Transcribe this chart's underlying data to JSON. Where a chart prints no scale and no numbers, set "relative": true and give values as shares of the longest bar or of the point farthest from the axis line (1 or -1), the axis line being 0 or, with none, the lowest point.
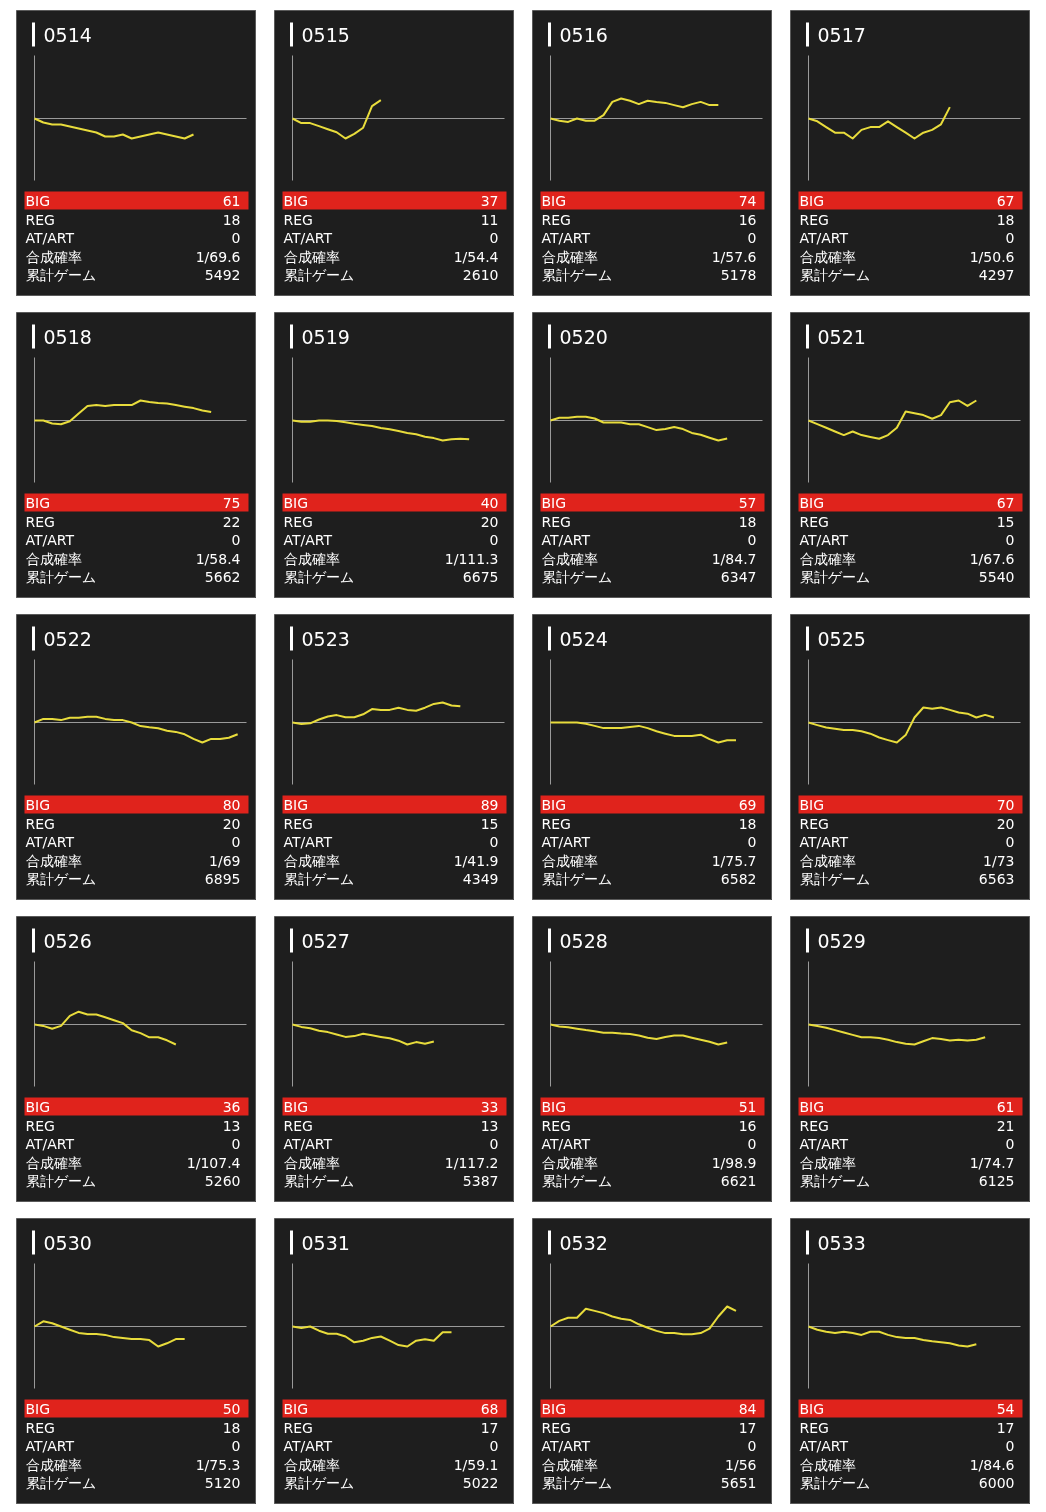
{
  "chart_data": [
    {
      "type": "line",
      "title": "0514",
      "color": "#e8dc3c",
      "relative": true,
      "categories": [
        null,
        null,
        null,
        null,
        null,
        null,
        null,
        null,
        null,
        null,
        null,
        null,
        null,
        null,
        null,
        null,
        null,
        null,
        null,
        null,
        null,
        null,
        null,
        null,
        null
      ],
      "values": [
        0,
        -0.2,
        -0.3,
        -0.3,
        -0.4,
        -0.5,
        -0.6,
        -0.7,
        -0.9,
        -0.9,
        -0.8,
        -1,
        -0.9,
        -0.8,
        -0.7,
        -0.8,
        -0.9,
        -1,
        -0.8,
        null,
        null,
        null,
        null,
        null,
        null
      ],
      "annotations": [
        "BIG",
        "61",
        "REG",
        "18",
        "AT/ART",
        "0",
        "合成確率",
        "1/69.6",
        "累計ゲーム",
        "5492"
      ]
    },
    {
      "type": "line",
      "title": "0515",
      "color": "#e8dc3c",
      "relative": true,
      "categories": [
        null,
        null,
        null,
        null,
        null,
        null,
        null,
        null,
        null,
        null,
        null,
        null,
        null,
        null,
        null,
        null,
        null,
        null,
        null,
        null,
        null,
        null,
        null,
        null,
        null
      ],
      "values": [
        0,
        -0.23,
        -0.23,
        -0.38,
        -0.54,
        -0.69,
        -1,
        -0.77,
        -0.46,
        0.62,
        0.92,
        null,
        null,
        null,
        null,
        null,
        null,
        null,
        null,
        null,
        null,
        null,
        null,
        null,
        null
      ],
      "annotations": [
        "BIG",
        "37",
        "REG",
        "11",
        "AT/ART",
        "0",
        "合成確率",
        "1/54.4",
        "累計ゲーム",
        "2610"
      ]
    },
    {
      "type": "line",
      "title": "0516",
      "color": "#e8dc3c",
      "relative": true,
      "categories": [
        null,
        null,
        null,
        null,
        null,
        null,
        null,
        null,
        null,
        null,
        null,
        null,
        null,
        null,
        null,
        null,
        null,
        null,
        null,
        null,
        null,
        null,
        null,
        null,
        null
      ],
      "values": [
        0,
        -0.11,
        -0.17,
        0,
        -0.11,
        -0.11,
        0.17,
        0.83,
        1,
        0.89,
        0.72,
        0.89,
        0.83,
        0.78,
        0.67,
        0.56,
        0.72,
        0.83,
        0.67,
        0.67,
        null,
        null,
        null,
        null,
        null
      ],
      "annotations": [
        "BIG",
        "74",
        "REG",
        "16",
        "AT/ART",
        "0",
        "合成確率",
        "1/57.6",
        "累計ゲーム",
        "5178"
      ]
    },
    {
      "type": "line",
      "title": "0517",
      "color": "#e8dc3c",
      "relative": true,
      "categories": [
        null,
        null,
        null,
        null,
        null,
        null,
        null,
        null,
        null,
        null,
        null,
        null,
        null,
        null,
        null,
        null,
        null,
        null,
        null,
        null,
        null,
        null,
        null,
        null,
        null
      ],
      "values": [
        0,
        -0.14,
        -0.43,
        -0.71,
        -0.71,
        -1,
        -0.57,
        -0.43,
        -0.43,
        -0.14,
        -0.43,
        -0.71,
        -1,
        -0.71,
        -0.57,
        -0.29,
        0.57,
        null,
        null,
        null,
        null,
        null,
        null,
        null,
        null
      ],
      "annotations": [
        "BIG",
        "67",
        "REG",
        "18",
        "AT/ART",
        "0",
        "合成確率",
        "1/50.6",
        "累計ゲーム",
        "4297"
      ]
    },
    {
      "type": "line",
      "title": "0518",
      "color": "#e8dc3c",
      "relative": true,
      "categories": [
        null,
        null,
        null,
        null,
        null,
        null,
        null,
        null,
        null,
        null,
        null,
        null,
        null,
        null,
        null,
        null,
        null,
        null,
        null,
        null,
        null,
        null,
        null,
        null,
        null
      ],
      "values": [
        0,
        0,
        -0.15,
        -0.19,
        -0.04,
        0.35,
        0.73,
        0.77,
        0.73,
        0.77,
        0.77,
        0.77,
        1,
        0.92,
        0.88,
        0.85,
        0.77,
        0.69,
        0.62,
        0.5,
        0.42,
        null,
        null,
        null,
        null
      ],
      "annotations": [
        "BIG",
        "75",
        "REG",
        "22",
        "AT/ART",
        "0",
        "合成確率",
        "1/58.4",
        "累計ゲーム",
        "5662"
      ]
    },
    {
      "type": "line",
      "title": "0519",
      "color": "#e8dc3c",
      "relative": true,
      "categories": [
        null,
        null,
        null,
        null,
        null,
        null,
        null,
        null,
        null,
        null,
        null,
        null,
        null,
        null,
        null,
        null,
        null,
        null,
        null,
        null,
        null,
        null,
        null,
        null,
        null
      ],
      "values": [
        0,
        -0.06,
        -0.06,
        0,
        0,
        -0.03,
        -0.09,
        -0.16,
        -0.22,
        -0.28,
        -0.38,
        -0.44,
        -0.53,
        -0.63,
        -0.69,
        -0.81,
        -0.88,
        -1,
        -0.94,
        -0.91,
        -0.94,
        null,
        null,
        null,
        null
      ],
      "annotations": [
        "BIG",
        "40",
        "REG",
        "20",
        "AT/ART",
        "0",
        "合成確率",
        "1/111.3",
        "累計ゲーム",
        "6675"
      ]
    },
    {
      "type": "line",
      "title": "0520",
      "color": "#e8dc3c",
      "relative": true,
      "categories": [
        null,
        null,
        null,
        null,
        null,
        null,
        null,
        null,
        null,
        null,
        null,
        null,
        null,
        null,
        null,
        null,
        null,
        null,
        null,
        null,
        null,
        null,
        null,
        null,
        null
      ],
      "values": [
        0,
        0.14,
        0.14,
        0.19,
        0.19,
        0.1,
        -0.1,
        -0.1,
        -0.1,
        -0.19,
        -0.19,
        -0.33,
        -0.48,
        -0.43,
        -0.33,
        -0.43,
        -0.62,
        -0.71,
        -0.86,
        -1,
        -0.9,
        null,
        null,
        null,
        null
      ],
      "annotations": [
        "BIG",
        "57",
        "REG",
        "18",
        "AT/ART",
        "0",
        "合成確率",
        "1/84.7",
        "累計ゲーム",
        "6347"
      ]
    },
    {
      "type": "line",
      "title": "0521",
      "color": "#e8dc3c",
      "relative": true,
      "categories": [
        null,
        null,
        null,
        null,
        null,
        null,
        null,
        null,
        null,
        null,
        null,
        null,
        null,
        null,
        null,
        null,
        null,
        null,
        null,
        null,
        null,
        null,
        null,
        null,
        null
      ],
      "values": [
        0,
        -0.18,
        -0.36,
        -0.55,
        -0.73,
        -0.55,
        -0.73,
        -0.82,
        -0.91,
        -0.73,
        -0.36,
        0.45,
        0.36,
        0.27,
        0.09,
        0.27,
        0.91,
        1,
        0.73,
        1,
        null,
        null,
        null,
        null,
        null
      ],
      "annotations": [
        "BIG",
        "67",
        "REG",
        "15",
        "AT/ART",
        "0",
        "合成確率",
        "1/67.6",
        "累計ゲーム",
        "5540"
      ]
    },
    {
      "type": "line",
      "title": "0522",
      "color": "#e8dc3c",
      "relative": true,
      "categories": [
        null,
        null,
        null,
        null,
        null,
        null,
        null,
        null,
        null,
        null,
        null,
        null,
        null,
        null,
        null,
        null,
        null,
        null,
        null,
        null,
        null,
        null,
        null,
        null,
        null
      ],
      "values": [
        0,
        0.18,
        0.18,
        0.12,
        0.24,
        0.24,
        0.29,
        0.29,
        0.18,
        0.12,
        0.12,
        0,
        -0.18,
        -0.24,
        -0.29,
        -0.41,
        -0.47,
        -0.59,
        -0.82,
        -1,
        -0.82,
        -0.82,
        -0.76,
        -0.59,
        null
      ],
      "annotations": [
        "BIG",
        "80",
        "REG",
        "20",
        "AT/ART",
        "0",
        "合成確率",
        "1/69",
        "累計ゲーム",
        "6895"
      ]
    },
    {
      "type": "line",
      "title": "0523",
      "color": "#e8dc3c",
      "relative": true,
      "categories": [
        null,
        null,
        null,
        null,
        null,
        null,
        null,
        null,
        null,
        null,
        null,
        null,
        null,
        null,
        null,
        null,
        null,
        null,
        null,
        null,
        null,
        null,
        null,
        null,
        null
      ],
      "values": [
        0,
        -0.07,
        -0.04,
        0.15,
        0.3,
        0.37,
        0.26,
        0.26,
        0.41,
        0.67,
        0.63,
        0.63,
        0.74,
        0.63,
        0.59,
        0.74,
        0.93,
        1,
        0.85,
        0.81,
        null,
        null,
        null,
        null,
        null
      ],
      "annotations": [
        "BIG",
        "89",
        "REG",
        "15",
        "AT/ART",
        "0",
        "合成確率",
        "1/41.9",
        "累計ゲーム",
        "4349"
      ]
    },
    {
      "type": "line",
      "title": "0524",
      "color": "#e8dc3c",
      "relative": true,
      "categories": [
        null,
        null,
        null,
        null,
        null,
        null,
        null,
        null,
        null,
        null,
        null,
        null,
        null,
        null,
        null,
        null,
        null,
        null,
        null,
        null,
        null,
        null,
        null,
        null,
        null
      ],
      "values": [
        0,
        0,
        0,
        0,
        -0.06,
        -0.17,
        -0.28,
        -0.28,
        -0.28,
        -0.22,
        -0.17,
        -0.28,
        -0.44,
        -0.56,
        -0.67,
        -0.67,
        -0.67,
        -0.61,
        -0.83,
        -1,
        -0.89,
        -0.89,
        null,
        null,
        null
      ],
      "annotations": [
        "BIG",
        "69",
        "REG",
        "18",
        "AT/ART",
        "0",
        "合成確率",
        "1/75.7",
        "累計ゲーム",
        "6582"
      ]
    },
    {
      "type": "line",
      "title": "0525",
      "color": "#e8dc3c",
      "relative": true,
      "categories": [
        null,
        null,
        null,
        null,
        null,
        null,
        null,
        null,
        null,
        null,
        null,
        null,
        null,
        null,
        null,
        null,
        null,
        null,
        null,
        null,
        null,
        null,
        null,
        null,
        null
      ],
      "values": [
        0,
        -0.13,
        -0.25,
        -0.31,
        -0.38,
        -0.38,
        -0.44,
        -0.56,
        -0.75,
        -0.88,
        -1,
        -0.63,
        0.25,
        0.75,
        0.69,
        0.75,
        0.63,
        0.5,
        0.44,
        0.25,
        0.38,
        0.25,
        null,
        null,
        null
      ],
      "annotations": [
        "BIG",
        "70",
        "REG",
        "20",
        "AT/ART",
        "0",
        "合成確率",
        "1/73",
        "累計ゲーム",
        "6563"
      ]
    },
    {
      "type": "line",
      "title": "0526",
      "color": "#e8dc3c",
      "relative": true,
      "categories": [
        null,
        null,
        null,
        null,
        null,
        null,
        null,
        null,
        null,
        null,
        null,
        null,
        null,
        null,
        null,
        null,
        null,
        null,
        null,
        null,
        null,
        null,
        null,
        null,
        null
      ],
      "values": [
        0,
        -0.07,
        -0.21,
        -0.07,
        0.43,
        0.64,
        0.5,
        0.5,
        0.36,
        0.21,
        0.07,
        -0.29,
        -0.43,
        -0.64,
        -0.64,
        -0.79,
        -1,
        null,
        null,
        null,
        null,
        null,
        null,
        null,
        null
      ],
      "annotations": [
        "BIG",
        "36",
        "REG",
        "13",
        "AT/ART",
        "0",
        "合成確率",
        "1/107.4",
        "累計ゲーム",
        "5260"
      ]
    },
    {
      "type": "line",
      "title": "0527",
      "color": "#e8dc3c",
      "relative": true,
      "categories": [
        null,
        null,
        null,
        null,
        null,
        null,
        null,
        null,
        null,
        null,
        null,
        null,
        null,
        null,
        null,
        null,
        null,
        null,
        null,
        null,
        null,
        null,
        null,
        null,
        null
      ],
      "values": [
        0,
        -0.12,
        -0.19,
        -0.31,
        -0.38,
        -0.5,
        -0.62,
        -0.58,
        -0.46,
        -0.54,
        -0.62,
        -0.69,
        -0.81,
        -1,
        -0.88,
        -0.96,
        -0.85,
        null,
        null,
        null,
        null,
        null,
        null,
        null,
        null
      ],
      "annotations": [
        "BIG",
        "33",
        "REG",
        "13",
        "AT/ART",
        "0",
        "合成確率",
        "1/117.2",
        "累計ゲーム",
        "5387"
      ]
    },
    {
      "type": "line",
      "title": "0528",
      "color": "#e8dc3c",
      "relative": true,
      "categories": [
        null,
        null,
        null,
        null,
        null,
        null,
        null,
        null,
        null,
        null,
        null,
        null,
        null,
        null,
        null,
        null,
        null,
        null,
        null,
        null,
        null,
        null,
        null,
        null,
        null
      ],
      "values": [
        0,
        -0.1,
        -0.14,
        -0.21,
        -0.28,
        -0.34,
        -0.41,
        -0.41,
        -0.45,
        -0.48,
        -0.55,
        -0.66,
        -0.72,
        -0.62,
        -0.55,
        -0.55,
        -0.66,
        -0.76,
        -0.86,
        -1,
        -0.9,
        null,
        null,
        null,
        null
      ],
      "annotations": [
        "BIG",
        "51",
        "REG",
        "16",
        "AT/ART",
        "0",
        "合成確率",
        "1/98.9",
        "累計ゲーム",
        "6621"
      ]
    },
    {
      "type": "line",
      "title": "0529",
      "color": "#e8dc3c",
      "relative": true,
      "categories": [
        null,
        null,
        null,
        null,
        null,
        null,
        null,
        null,
        null,
        null,
        null,
        null,
        null,
        null,
        null,
        null,
        null,
        null,
        null,
        null,
        null,
        null,
        null,
        null,
        null
      ],
      "values": [
        0,
        -0.08,
        -0.16,
        -0.28,
        -0.4,
        -0.52,
        -0.64,
        -0.64,
        -0.68,
        -0.76,
        -0.88,
        -0.96,
        -1,
        -0.84,
        -0.68,
        -0.72,
        -0.8,
        -0.76,
        -0.8,
        -0.76,
        -0.64,
        null,
        null,
        null,
        null
      ],
      "annotations": [
        "BIG",
        "61",
        "REG",
        "21",
        "AT/ART",
        "0",
        "合成確率",
        "1/74.7",
        "累計ゲーム",
        "6125"
      ]
    },
    {
      "type": "line",
      "title": "0530",
      "color": "#e8dc3c",
      "relative": true,
      "categories": [
        null,
        null,
        null,
        null,
        null,
        null,
        null,
        null,
        null,
        null,
        null,
        null,
        null,
        null,
        null,
        null,
        null,
        null,
        null,
        null,
        null,
        null,
        null,
        null,
        null
      ],
      "values": [
        0,
        0.26,
        0.16,
        0,
        -0.16,
        -0.32,
        -0.37,
        -0.37,
        -0.42,
        -0.53,
        -0.58,
        -0.63,
        -0.63,
        -0.68,
        -1,
        -0.84,
        -0.63,
        -0.63,
        null,
        null,
        null,
        null,
        null,
        null,
        null
      ],
      "annotations": [
        "BIG",
        "50",
        "REG",
        "18",
        "AT/ART",
        "0",
        "合成確率",
        "1/75.3",
        "累計ゲーム",
        "5120"
      ]
    },
    {
      "type": "line",
      "title": "0531",
      "color": "#e8dc3c",
      "relative": true,
      "categories": [
        null,
        null,
        null,
        null,
        null,
        null,
        null,
        null,
        null,
        null,
        null,
        null,
        null,
        null,
        null,
        null,
        null,
        null,
        null,
        null,
        null,
        null,
        null,
        null,
        null
      ],
      "values": [
        0,
        -0.07,
        0,
        -0.21,
        -0.36,
        -0.36,
        -0.5,
        -0.79,
        -0.71,
        -0.57,
        -0.5,
        -0.71,
        -0.93,
        -1,
        -0.71,
        -0.64,
        -0.71,
        -0.29,
        -0.29,
        null,
        null,
        null,
        null,
        null,
        null
      ],
      "annotations": [
        "BIG",
        "68",
        "REG",
        "17",
        "AT/ART",
        "0",
        "合成確率",
        "1/59.1",
        "累計ゲーム",
        "5022"
      ]
    },
    {
      "type": "line",
      "title": "0532",
      "color": "#e8dc3c",
      "relative": true,
      "categories": [
        null,
        null,
        null,
        null,
        null,
        null,
        null,
        null,
        null,
        null,
        null,
        null,
        null,
        null,
        null,
        null,
        null,
        null,
        null,
        null,
        null,
        null,
        null,
        null,
        null
      ],
      "values": [
        0,
        0.28,
        0.44,
        0.44,
        0.89,
        0.78,
        0.67,
        0.5,
        0.39,
        0.33,
        0.11,
        -0.06,
        -0.22,
        -0.33,
        -0.33,
        -0.39,
        -0.39,
        -0.33,
        -0.11,
        0.5,
        1,
        0.78,
        null,
        null,
        null
      ],
      "annotations": [
        "BIG",
        "84",
        "REG",
        "17",
        "AT/ART",
        "0",
        "合成確率",
        "1/56",
        "累計ゲーム",
        "5651"
      ]
    },
    {
      "type": "line",
      "title": "0533",
      "color": "#e8dc3c",
      "relative": true,
      "categories": [
        null,
        null,
        null,
        null,
        null,
        null,
        null,
        null,
        null,
        null,
        null,
        null,
        null,
        null,
        null,
        null,
        null,
        null,
        null,
        null,
        null,
        null,
        null,
        null,
        null
      ],
      "values": [
        0,
        -0.16,
        -0.26,
        -0.32,
        -0.26,
        -0.32,
        -0.42,
        -0.26,
        -0.26,
        -0.42,
        -0.53,
        -0.58,
        -0.58,
        -0.68,
        -0.74,
        -0.79,
        -0.84,
        -0.95,
        -1,
        -0.89,
        null,
        null,
        null,
        null,
        null
      ],
      "annotations": [
        "BIG",
        "54",
        "REG",
        "17",
        "AT/ART",
        "0",
        "合成確率",
        "1/84.6",
        "累計ゲーム",
        "6000"
      ]
    }
  ]
}
